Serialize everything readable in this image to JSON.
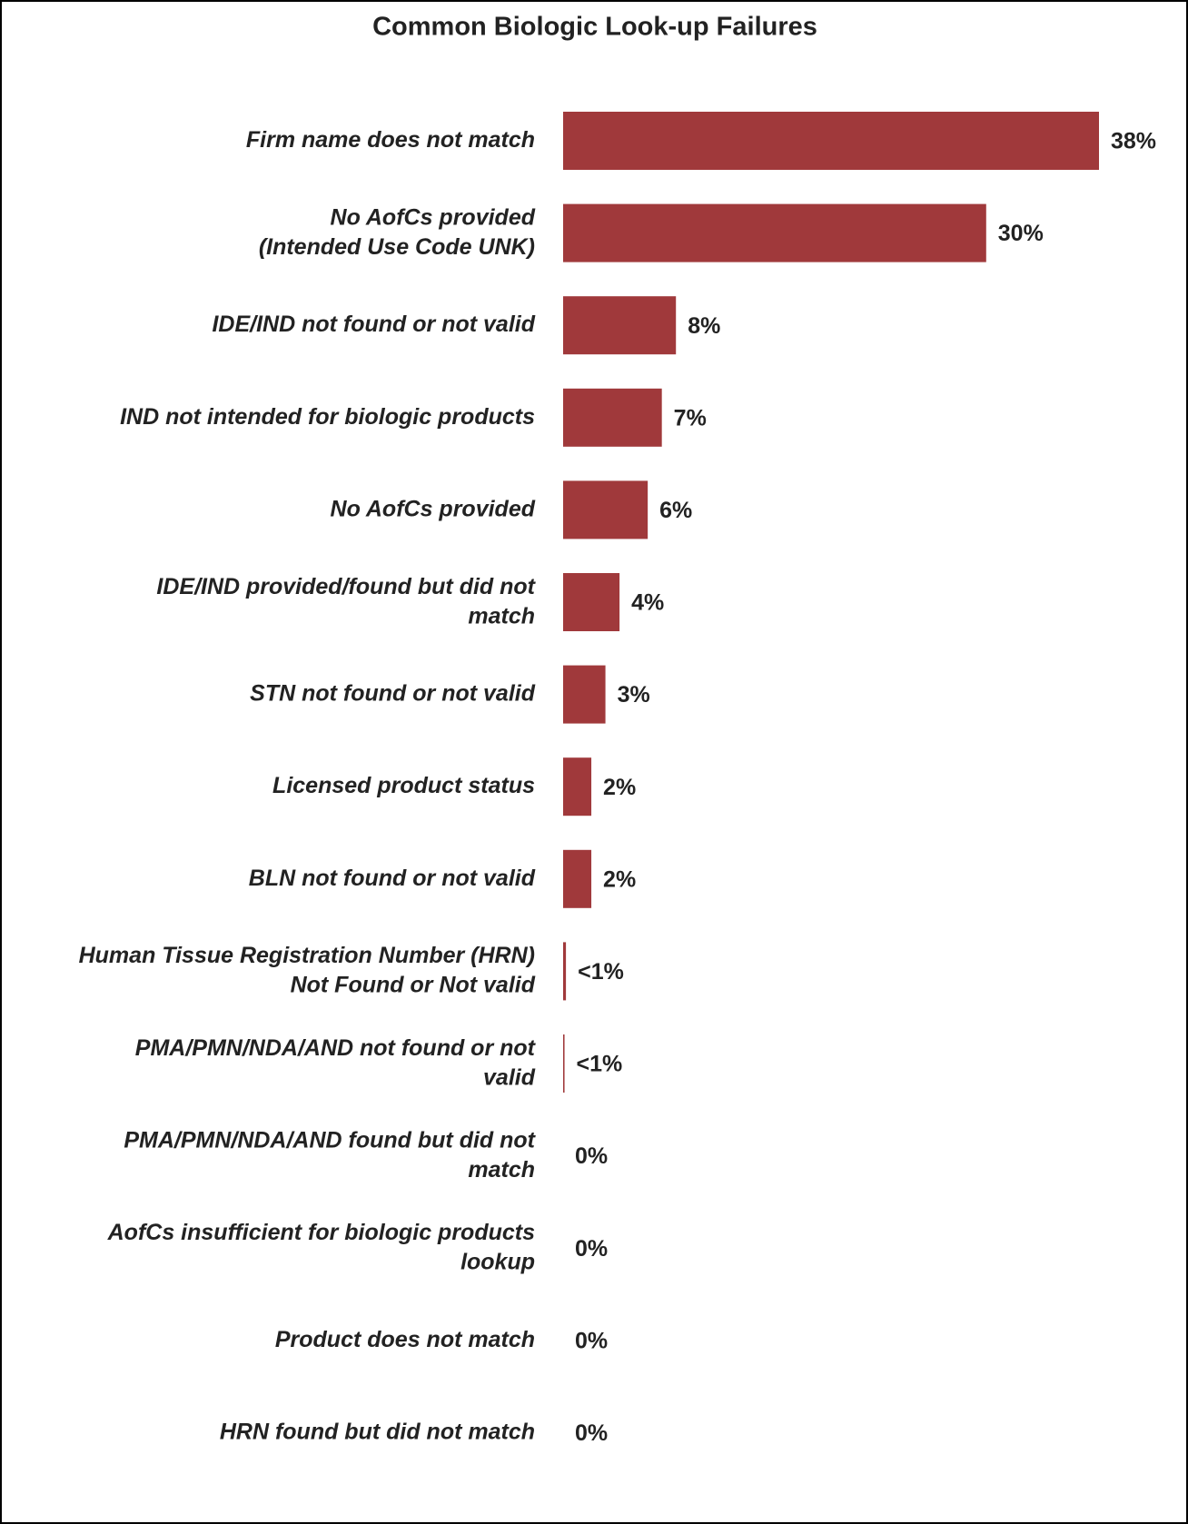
{
  "chart_data": {
    "type": "bar",
    "orientation": "horizontal",
    "title": "Common Biologic Look-up Failures",
    "categories": [
      "Firm name does not match",
      "No AofCs provided\n(Intended Use Code UNK)",
      "IDE/IND not found or not valid",
      "IND not intended for biologic products",
      "No AofCs provided",
      "IDE/IND provided/found but did not\nmatch",
      "STN not found or not valid",
      "Licensed product status",
      "BLN not found or not valid",
      "Human Tissue Registration Number (HRN)\nNot Found or Not valid",
      "PMA/PMN/NDA/AND not found or not\nvalid",
      "PMA/PMN/NDA/AND found but did not\nmatch",
      "AofCs insufficient for biologic products\nlookup",
      "Product does not match",
      "HRN found but did not match"
    ],
    "values": [
      38,
      30,
      8,
      7,
      6,
      4,
      3,
      2,
      2,
      0.2,
      0.1,
      0,
      0,
      0,
      0
    ],
    "value_labels": [
      "38%",
      "30%",
      "8%",
      "7%",
      "6%",
      "4%",
      "3%",
      "2%",
      "2%",
      "<1%",
      "<1%",
      "0%",
      "0%",
      "0%",
      "0%"
    ],
    "color": "#a0393b"
  }
}
